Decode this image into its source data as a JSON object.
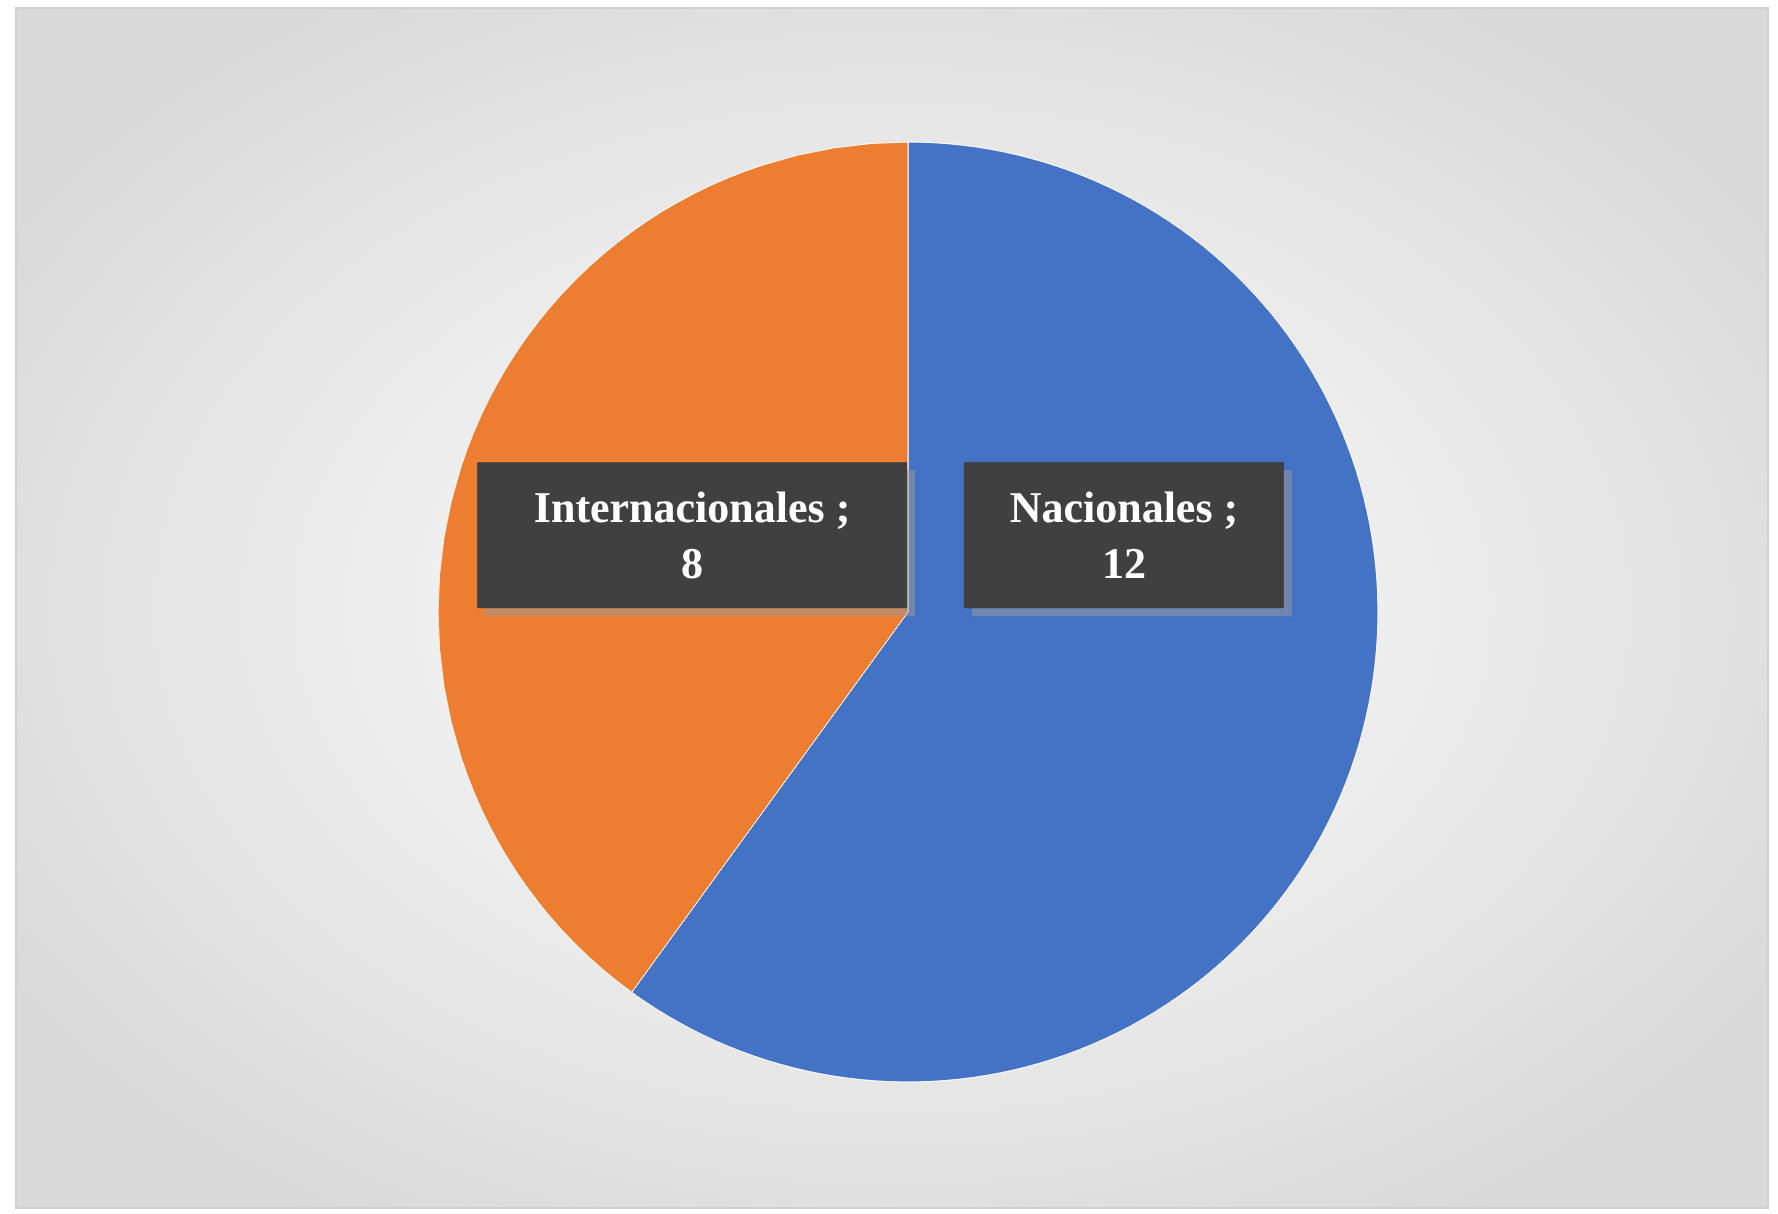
{
  "chart_data": {
    "type": "pie",
    "categories": [
      "Nacionales",
      "Internacionales"
    ],
    "values": [
      12,
      8
    ],
    "colors": [
      "#4472c4",
      "#ed7d31"
    ],
    "value_labels": [
      "; 12",
      "; 8"
    ]
  }
}
